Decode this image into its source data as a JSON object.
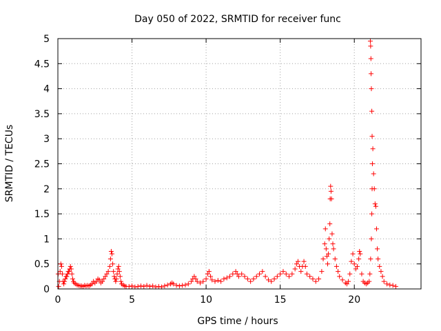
{
  "chart_data": {
    "type": "scatter",
    "title": "Day 050 of 2022, SRMTID for receiver func",
    "xlabel": "GPS time / hours",
    "ylabel": "SRMTID / TECUs",
    "xlim": [
      0,
      24.5
    ],
    "ylim": [
      0,
      5
    ],
    "xticks": [
      0,
      5,
      10,
      15,
      20
    ],
    "xtick_labels": [
      "0",
      "5",
      "10",
      "15",
      "20"
    ],
    "yticks": [
      0,
      0.5,
      1,
      1.5,
      2,
      2.5,
      3,
      3.5,
      4,
      4.5,
      5
    ],
    "ytick_labels": [
      "0",
      "0.5",
      "1",
      "1.5",
      "2",
      "2.5",
      "3",
      "3.5",
      "4",
      "4.5",
      "5"
    ],
    "grid": true,
    "marker": "+",
    "color": "#ff0000",
    "series": [
      {
        "name": "SRMTID",
        "points": [
          [
            0.02,
            0.3
          ],
          [
            0.05,
            0.05
          ],
          [
            0.1,
            0.15
          ],
          [
            0.15,
            0.35
          ],
          [
            0.2,
            0.5
          ],
          [
            0.25,
            0.45
          ],
          [
            0.3,
            0.3
          ],
          [
            0.35,
            0.15
          ],
          [
            0.4,
            0.1
          ],
          [
            0.45,
            0.15
          ],
          [
            0.5,
            0.2
          ],
          [
            0.55,
            0.25
          ],
          [
            0.6,
            0.25
          ],
          [
            0.65,
            0.3
          ],
          [
            0.7,
            0.35
          ],
          [
            0.75,
            0.35
          ],
          [
            0.8,
            0.4
          ],
          [
            0.85,
            0.45
          ],
          [
            0.9,
            0.4
          ],
          [
            0.95,
            0.3
          ],
          [
            1.0,
            0.2
          ],
          [
            1.05,
            0.15
          ],
          [
            1.1,
            0.12
          ],
          [
            1.2,
            0.1
          ],
          [
            1.3,
            0.08
          ],
          [
            1.4,
            0.07
          ],
          [
            1.5,
            0.06
          ],
          [
            1.6,
            0.06
          ],
          [
            1.7,
            0.05
          ],
          [
            1.8,
            0.07
          ],
          [
            1.9,
            0.06
          ],
          [
            2.0,
            0.07
          ],
          [
            2.1,
            0.06
          ],
          [
            2.2,
            0.08
          ],
          [
            2.3,
            0.1
          ],
          [
            2.4,
            0.15
          ],
          [
            2.5,
            0.12
          ],
          [
            2.6,
            0.15
          ],
          [
            2.7,
            0.2
          ],
          [
            2.8,
            0.18
          ],
          [
            2.9,
            0.12
          ],
          [
            3.0,
            0.15
          ],
          [
            3.1,
            0.2
          ],
          [
            3.2,
            0.25
          ],
          [
            3.3,
            0.3
          ],
          [
            3.4,
            0.35
          ],
          [
            3.5,
            0.45
          ],
          [
            3.55,
            0.6
          ],
          [
            3.6,
            0.75
          ],
          [
            3.65,
            0.7
          ],
          [
            3.7,
            0.5
          ],
          [
            3.75,
            0.35
          ],
          [
            3.8,
            0.25
          ],
          [
            3.85,
            0.2
          ],
          [
            3.9,
            0.15
          ],
          [
            3.95,
            0.2
          ],
          [
            4.0,
            0.3
          ],
          [
            4.05,
            0.4
          ],
          [
            4.1,
            0.45
          ],
          [
            4.15,
            0.35
          ],
          [
            4.2,
            0.25
          ],
          [
            4.25,
            0.15
          ],
          [
            4.3,
            0.1
          ],
          [
            4.4,
            0.08
          ],
          [
            4.5,
            0.06
          ],
          [
            4.6,
            0.05
          ],
          [
            4.8,
            0.05
          ],
          [
            5.0,
            0.06
          ],
          [
            5.2,
            0.04
          ],
          [
            5.4,
            0.05
          ],
          [
            5.6,
            0.06
          ],
          [
            5.8,
            0.05
          ],
          [
            6.0,
            0.07
          ],
          [
            6.2,
            0.05
          ],
          [
            6.4,
            0.06
          ],
          [
            6.6,
            0.04
          ],
          [
            6.8,
            0.05
          ],
          [
            7.0,
            0.04
          ],
          [
            7.2,
            0.06
          ],
          [
            7.4,
            0.08
          ],
          [
            7.6,
            0.1
          ],
          [
            7.7,
            0.12
          ],
          [
            7.8,
            0.1
          ],
          [
            8.0,
            0.07
          ],
          [
            8.2,
            0.06
          ],
          [
            8.4,
            0.07
          ],
          [
            8.6,
            0.08
          ],
          [
            8.8,
            0.1
          ],
          [
            9.0,
            0.15
          ],
          [
            9.1,
            0.2
          ],
          [
            9.2,
            0.25
          ],
          [
            9.3,
            0.2
          ],
          [
            9.4,
            0.15
          ],
          [
            9.6,
            0.12
          ],
          [
            9.8,
            0.15
          ],
          [
            10.0,
            0.2
          ],
          [
            10.1,
            0.3
          ],
          [
            10.2,
            0.35
          ],
          [
            10.3,
            0.25
          ],
          [
            10.4,
            0.18
          ],
          [
            10.6,
            0.15
          ],
          [
            10.8,
            0.17
          ],
          [
            11.0,
            0.15
          ],
          [
            11.2,
            0.2
          ],
          [
            11.4,
            0.22
          ],
          [
            11.6,
            0.25
          ],
          [
            11.8,
            0.3
          ],
          [
            12.0,
            0.35
          ],
          [
            12.1,
            0.3
          ],
          [
            12.2,
            0.25
          ],
          [
            12.4,
            0.3
          ],
          [
            12.6,
            0.25
          ],
          [
            12.8,
            0.2
          ],
          [
            13.0,
            0.15
          ],
          [
            13.2,
            0.2
          ],
          [
            13.4,
            0.25
          ],
          [
            13.6,
            0.3
          ],
          [
            13.8,
            0.35
          ],
          [
            14.0,
            0.25
          ],
          [
            14.2,
            0.18
          ],
          [
            14.4,
            0.15
          ],
          [
            14.6,
            0.2
          ],
          [
            14.8,
            0.25
          ],
          [
            15.0,
            0.3
          ],
          [
            15.2,
            0.35
          ],
          [
            15.4,
            0.3
          ],
          [
            15.6,
            0.25
          ],
          [
            15.8,
            0.3
          ],
          [
            16.0,
            0.4
          ],
          [
            16.1,
            0.5
          ],
          [
            16.2,
            0.55
          ],
          [
            16.3,
            0.45
          ],
          [
            16.4,
            0.35
          ],
          [
            16.5,
            0.45
          ],
          [
            16.6,
            0.55
          ],
          [
            16.7,
            0.45
          ],
          [
            16.8,
            0.3
          ],
          [
            17.0,
            0.25
          ],
          [
            17.2,
            0.2
          ],
          [
            17.4,
            0.15
          ],
          [
            17.6,
            0.2
          ],
          [
            17.8,
            0.35
          ],
          [
            17.9,
            0.6
          ],
          [
            18.0,
            0.9
          ],
          [
            18.05,
            1.2
          ],
          [
            18.1,
            0.8
          ],
          [
            18.15,
            0.65
          ],
          [
            18.2,
            0.5
          ],
          [
            18.25,
            0.7
          ],
          [
            18.3,
            1.0
          ],
          [
            18.35,
            1.3
          ],
          [
            18.37,
            1.8
          ],
          [
            18.4,
            2.05
          ],
          [
            18.43,
            1.95
          ],
          [
            18.46,
            1.8
          ],
          [
            18.5,
            1.1
          ],
          [
            18.55,
            0.9
          ],
          [
            18.6,
            0.8
          ],
          [
            18.7,
            0.6
          ],
          [
            18.8,
            0.45
          ],
          [
            18.9,
            0.35
          ],
          [
            19.0,
            0.25
          ],
          [
            19.2,
            0.18
          ],
          [
            19.4,
            0.12
          ],
          [
            19.5,
            0.1
          ],
          [
            19.6,
            0.15
          ],
          [
            19.7,
            0.3
          ],
          [
            19.8,
            0.55
          ],
          [
            19.9,
            0.7
          ],
          [
            20.0,
            0.5
          ],
          [
            20.1,
            0.4
          ],
          [
            20.2,
            0.45
          ],
          [
            20.3,
            0.6
          ],
          [
            20.35,
            0.75
          ],
          [
            20.4,
            0.7
          ],
          [
            20.5,
            0.3
          ],
          [
            20.6,
            0.15
          ],
          [
            20.7,
            0.12
          ],
          [
            20.8,
            0.1
          ],
          [
            20.9,
            0.12
          ],
          [
            21.0,
            0.15
          ],
          [
            21.05,
            0.3
          ],
          [
            21.1,
            0.6
          ],
          [
            21.15,
            1.0
          ],
          [
            21.18,
            1.5
          ],
          [
            21.2,
            2.0
          ],
          [
            21.22,
            2.5
          ],
          [
            21.25,
            2.8
          ],
          [
            21.2,
            3.05
          ],
          [
            21.18,
            3.55
          ],
          [
            21.15,
            4.0
          ],
          [
            21.13,
            4.3
          ],
          [
            21.12,
            4.6
          ],
          [
            21.1,
            4.85
          ],
          [
            21.08,
            4.95
          ],
          [
            21.3,
            2.3
          ],
          [
            21.35,
            2.0
          ],
          [
            21.4,
            1.7
          ],
          [
            21.45,
            1.65
          ],
          [
            21.5,
            1.2
          ],
          [
            21.55,
            0.8
          ],
          [
            21.6,
            0.6
          ],
          [
            21.7,
            0.45
          ],
          [
            21.8,
            0.35
          ],
          [
            21.9,
            0.25
          ],
          [
            22.0,
            0.15
          ],
          [
            22.2,
            0.1
          ],
          [
            22.4,
            0.08
          ],
          [
            22.6,
            0.07
          ],
          [
            22.8,
            0.05
          ]
        ]
      }
    ]
  }
}
